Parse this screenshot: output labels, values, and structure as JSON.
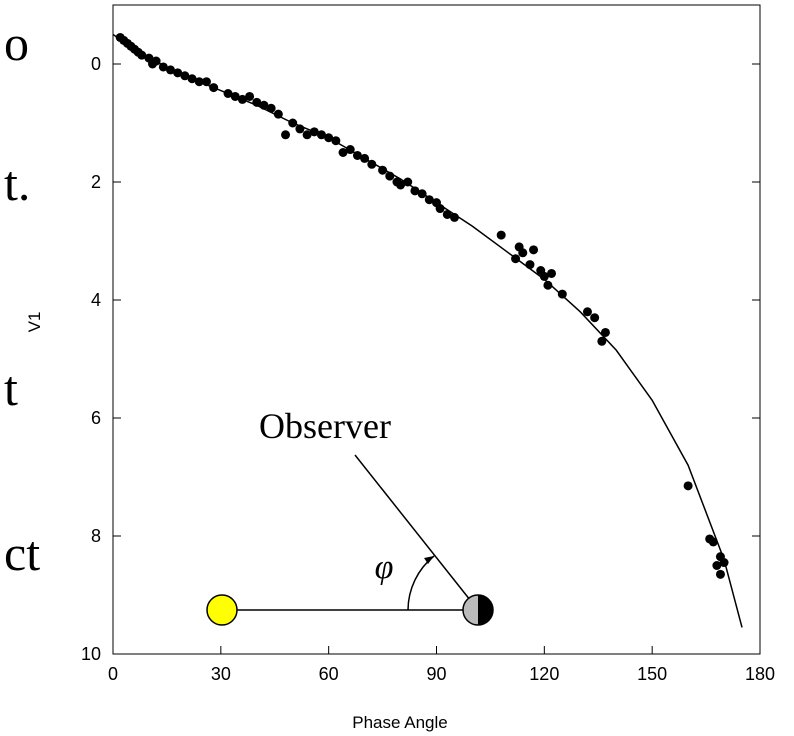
{
  "chart_data": {
    "type": "scatter",
    "x_label": "Phase Angle",
    "y_label": "V1",
    "xlim": [
      0,
      180
    ],
    "xticks": [
      0,
      30,
      60,
      90,
      120,
      150,
      180
    ],
    "ylim": [
      10,
      -1
    ],
    "yticks": [
      0,
      2,
      4,
      6,
      8,
      10
    ],
    "color": "#000000",
    "x": [
      2,
      3,
      4,
      5,
      6,
      7,
      8,
      10,
      11,
      12,
      14,
      16,
      18,
      20,
      22,
      24,
      26,
      28,
      32,
      34,
      36,
      38,
      40,
      42,
      44,
      46,
      48,
      50,
      52,
      54,
      56,
      58,
      60,
      62,
      64,
      66,
      68,
      70,
      72,
      75,
      77,
      79,
      80,
      82,
      84,
      86,
      88,
      90,
      91,
      93,
      95,
      108,
      112,
      113,
      114,
      116,
      117,
      119,
      120,
      121,
      122,
      125,
      132,
      134,
      136,
      137,
      160,
      166,
      167,
      168,
      169,
      169,
      170
    ],
    "values": [
      -0.45,
      -0.4,
      -0.35,
      -0.3,
      -0.25,
      -0.2,
      -0.15,
      -0.1,
      0,
      -0.05,
      0.05,
      0.1,
      0.15,
      0.2,
      0.25,
      0.3,
      0.3,
      0.4,
      0.5,
      0.55,
      0.6,
      0.55,
      0.65,
      0.7,
      0.75,
      0.85,
      1.2,
      1.0,
      1.1,
      1.2,
      1.15,
      1.2,
      1.25,
      1.3,
      1.5,
      1.45,
      1.55,
      1.6,
      1.7,
      1.8,
      1.9,
      2.0,
      2.05,
      2.0,
      2.15,
      2.2,
      2.3,
      2.35,
      2.45,
      2.55,
      2.6,
      2.9,
      3.3,
      3.1,
      3.2,
      3.4,
      3.15,
      3.5,
      3.6,
      3.75,
      3.55,
      3.9,
      4.2,
      4.3,
      4.7,
      4.55,
      7.15,
      8.05,
      8.1,
      8.5,
      8.35,
      8.65,
      8.45
    ],
    "fit": {
      "x": [
        0,
        10,
        20,
        30,
        40,
        50,
        60,
        70,
        80,
        90,
        100,
        110,
        120,
        130,
        140,
        150,
        160,
        170,
        175
      ],
      "values": [
        -0.5,
        -0.1,
        0.2,
        0.45,
        0.7,
        1.0,
        1.25,
        1.6,
        1.95,
        2.35,
        2.75,
        3.2,
        3.65,
        4.2,
        4.85,
        5.7,
        6.8,
        8.4,
        9.55
      ]
    }
  },
  "diagram": {
    "observer_label": "Observer",
    "angle_label": "φ"
  },
  "slide_fragments": [
    "o",
    "t.",
    "t",
    "ct"
  ]
}
